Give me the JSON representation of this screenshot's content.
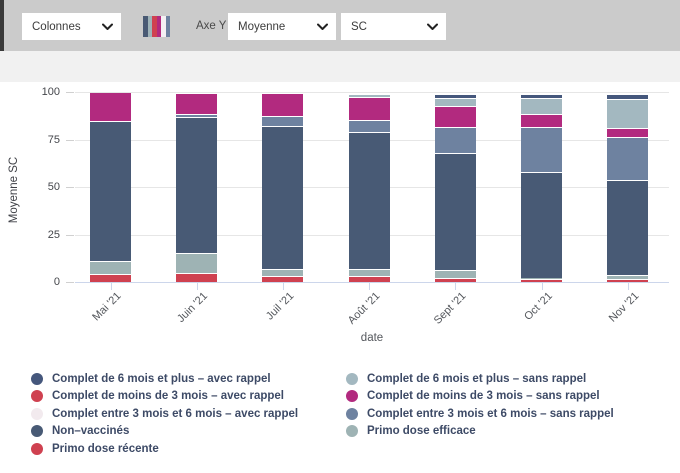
{
  "toolbar": {
    "columns_select": "Colonnes",
    "axis_y_label": "Axe Y",
    "measure_select": "Moyenne",
    "field_select": "SC",
    "icon_colors": [
      "#4a5a74",
      "#9fb3b8",
      "#cf4150",
      "#b22a7f",
      "#f5f0f3",
      "#6e82a0"
    ]
  },
  "chart_data": {
    "type": "bar",
    "stacked": true,
    "title": "",
    "xlabel": "date",
    "ylabel": "Moyenne SC",
    "ylim": [
      0,
      100
    ],
    "yticks": [
      0,
      25,
      50,
      75,
      100
    ],
    "grid": true,
    "categories": [
      "Mai '21",
      "Juin '21",
      "Juil '21",
      "Août '21",
      "Sept '21",
      "Oct '21",
      "Nov '21"
    ],
    "series": [
      {
        "name": "Primo dose récente",
        "color": "#cf4150",
        "values": [
          4,
          5,
          3,
          3,
          2,
          1.5,
          1.5
        ]
      },
      {
        "name": "Primo dose efficace",
        "color": "#9eb3b4",
        "values": [
          7,
          10.5,
          4,
          4,
          4.5,
          0.5,
          2
        ]
      },
      {
        "name": "Non–vaccinés",
        "color": "#485a75",
        "values": [
          74,
          71.5,
          75,
          72,
          61.5,
          56,
          50
        ]
      },
      {
        "name": "Complet entre 3 mois et 6 mois – sans rappel",
        "color": "#6e82a0",
        "values": [
          0,
          1.5,
          5.5,
          6.5,
          13.5,
          23.5,
          23
        ]
      },
      {
        "name": "Complet de moins de 3 mois – sans rappel",
        "color": "#b22a7f",
        "values": [
          15,
          11,
          12,
          12,
          11,
          7,
          4.5
        ]
      },
      {
        "name": "Complet de 6 mois et plus – sans rappel",
        "color": "#a3b8c0",
        "values": [
          0,
          0,
          0,
          1.5,
          4.5,
          8.5,
          15.5
        ]
      },
      {
        "name": "Complet de 6 mois et plus – avec rappel",
        "color": "#45577c",
        "values": [
          0,
          0,
          0,
          0,
          2,
          2,
          2.5
        ]
      },
      {
        "name": "Complet de moins de 3 mois – avec rappel",
        "color": "#cf4150",
        "values": [
          0,
          0,
          0,
          0,
          0,
          0,
          0
        ]
      },
      {
        "name": "Complet entre 3 mois et 6 mois – avec rappel",
        "color": "#f2eaee",
        "values": [
          0,
          0,
          0,
          0,
          0,
          0,
          0
        ]
      }
    ]
  },
  "legend": {
    "left": [
      {
        "label": "Complet de 6 mois et plus – avec rappel",
        "color": "#45577c"
      },
      {
        "label": "Complet de moins de 3 mois – avec rappel",
        "color": "#cf4150"
      },
      {
        "label": "Complet entre 3 mois et 6 mois – avec rappel",
        "color": "#f2eaee"
      },
      {
        "label": "Non–vaccinés",
        "color": "#485a75"
      },
      {
        "label": "Primo dose récente",
        "color": "#cf4150"
      }
    ],
    "right": [
      {
        "label": "Complet de 6 mois et plus – sans rappel",
        "color": "#a3b8c0"
      },
      {
        "label": "Complet de moins de 3 mois – sans rappel",
        "color": "#b22a7f"
      },
      {
        "label": "Complet entre 3 mois et 6 mois – sans rappel",
        "color": "#6e82a0"
      },
      {
        "label": "Primo dose efficace",
        "color": "#9eb3b4"
      }
    ]
  }
}
